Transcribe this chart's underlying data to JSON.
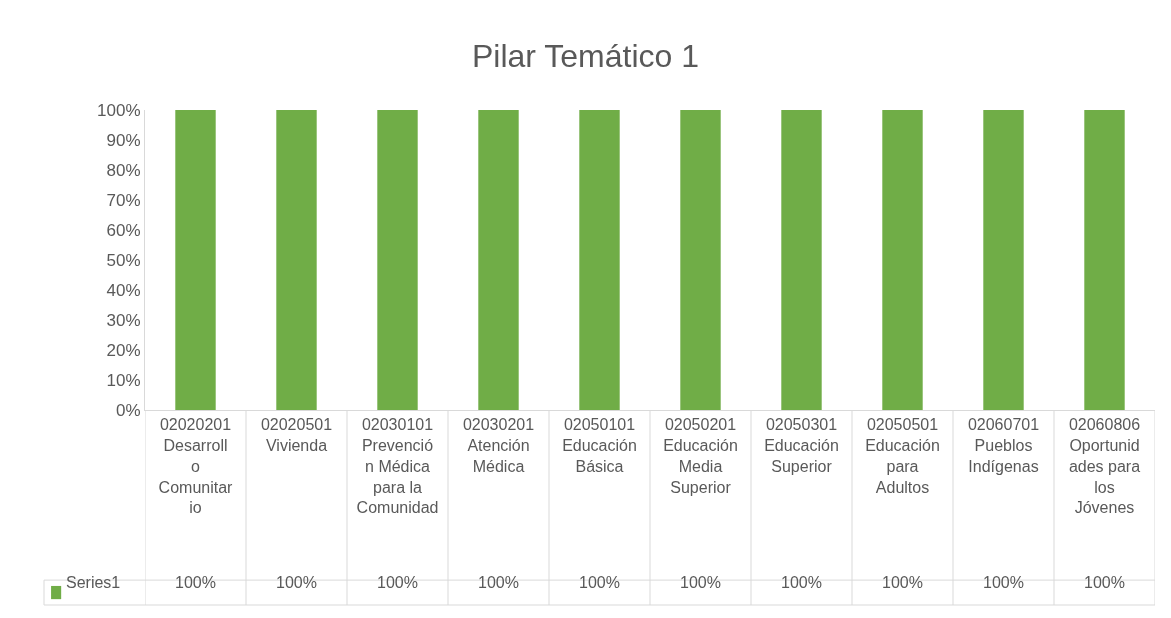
{
  "chart_data": {
    "type": "bar",
    "title": "Pilar Temático 1",
    "categories": [
      "02020201 Desarrollo Comunitario",
      "02020501 Vivienda",
      "02030101 Prevención Médica para la Comunidad",
      "02030201 Atención Médica",
      "02050101 Educación Básica",
      "02050201 Educación Media Superior",
      "02050301 Educación Superior",
      "02050501 Educación para Adultos",
      "02060701 Pueblos Indígenas",
      "02060806 Oportunidades para los Jóvenes"
    ],
    "series": [
      {
        "name": "Series1",
        "color": "#70ad47",
        "values": [
          100,
          100,
          100,
          100,
          100,
          100,
          100,
          100,
          100,
          100
        ],
        "value_labels": [
          "100%",
          "100%",
          "100%",
          "100%",
          "100%",
          "100%",
          "100%",
          "100%",
          "100%",
          "100%"
        ]
      }
    ],
    "ylim": [
      0,
      100
    ],
    "yticks": [
      {
        "value": 0,
        "label": "0%"
      },
      {
        "value": 10,
        "label": "10%"
      },
      {
        "value": 20,
        "label": "20%"
      },
      {
        "value": 30,
        "label": "30%"
      },
      {
        "value": 40,
        "label": "40%"
      },
      {
        "value": 50,
        "label": "50%"
      },
      {
        "value": 60,
        "label": "60%"
      },
      {
        "value": 70,
        "label": "70%"
      },
      {
        "value": 80,
        "label": "80%"
      },
      {
        "value": 90,
        "label": "90%"
      },
      {
        "value": 100,
        "label": "100%"
      }
    ],
    "grid": false,
    "legend": "bottom left"
  }
}
